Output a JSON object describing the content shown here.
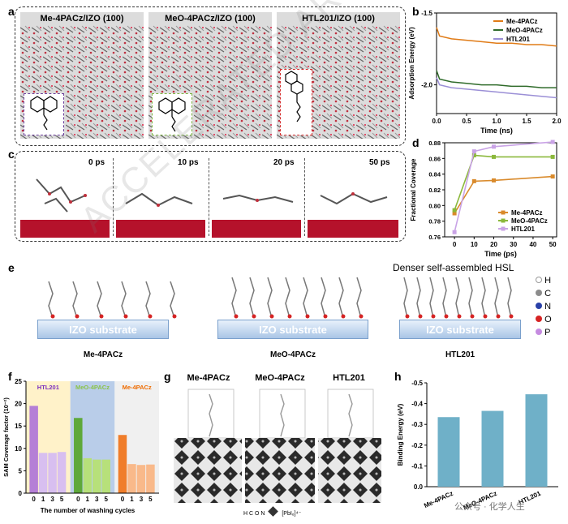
{
  "panels": {
    "a": {
      "label": "a",
      "titles": [
        "Me-4PACz/IZO (100)",
        "MeO-4PACz/IZO (100)",
        "HTL201/IZO (100)"
      ],
      "inset_colors": [
        "#6a3d9a",
        "#7cb342",
        "#d32f2f"
      ]
    },
    "b": {
      "label": "b"
    },
    "c": {
      "label": "c",
      "times": [
        "0 ps",
        "10 ps",
        "20 ps",
        "50 ps"
      ]
    },
    "d": {
      "label": "d"
    },
    "e": {
      "label": "e",
      "substrate_label": "IZO substrate",
      "captions": [
        "Me-4PACz",
        "MeO-4PACz",
        "HTL201"
      ],
      "top_note": "Denser self-assembled HSL",
      "element_legend": [
        {
          "sym": "H",
          "color": "#f2f2f2"
        },
        {
          "sym": "C",
          "color": "#8c8c8c"
        },
        {
          "sym": "N",
          "color": "#2940a8"
        },
        {
          "sym": "O",
          "color": "#d62424"
        },
        {
          "sym": "P",
          "color": "#c58be0"
        }
      ]
    },
    "f": {
      "label": "f"
    },
    "g": {
      "label": "g",
      "titles": [
        "Me-4PACz",
        "MeO-4PACz",
        "HTL201"
      ],
      "legend_text": "H  C  O  N",
      "legend_formula": "[PbI₆]⁴⁻"
    },
    "h": {
      "label": "h"
    }
  },
  "watermark": "ACCELERATED ARTICLE PREVIEW",
  "footer_watermark": "公众号 · 化学人生",
  "chart_data": [
    {
      "id": "b",
      "type": "line",
      "title": "",
      "xlabel": "Time (ns)",
      "ylabel": "Adsorption Energy (eV)",
      "xlim": [
        0.0,
        2.0
      ],
      "ylim": [
        -2.2,
        -1.5
      ],
      "xticks": [
        "0.0",
        "0.5",
        "1.0",
        "1.5",
        "2.0"
      ],
      "yticks": [
        "-1.5",
        "-2.0"
      ],
      "legend": "top-right",
      "series": [
        {
          "name": "Me-4PACz",
          "color": "#e07b16",
          "x": [
            0,
            0.05,
            0.25,
            0.5,
            0.75,
            1.0,
            1.25,
            1.5,
            1.75,
            2.0
          ],
          "y": [
            -1.6,
            -1.66,
            -1.68,
            -1.69,
            -1.7,
            -1.71,
            -1.71,
            -1.72,
            -1.72,
            -1.73
          ]
        },
        {
          "name": "MeO-4PACz",
          "color": "#2f6b2a",
          "x": [
            0,
            0.05,
            0.25,
            0.5,
            0.75,
            1.0,
            1.25,
            1.5,
            1.75,
            2.0
          ],
          "y": [
            -1.9,
            -1.96,
            -1.98,
            -1.99,
            -2.0,
            -2.0,
            -2.01,
            -2.01,
            -2.02,
            -2.02
          ]
        },
        {
          "name": "HTL201",
          "color": "#9b8fd6",
          "x": [
            0,
            0.05,
            0.25,
            0.5,
            0.75,
            1.0,
            1.25,
            1.5,
            1.75,
            2.0
          ],
          "y": [
            -1.95,
            -2.0,
            -2.02,
            -2.03,
            -2.04,
            -2.05,
            -2.06,
            -2.07,
            -2.08,
            -2.09
          ]
        }
      ]
    },
    {
      "id": "d",
      "type": "line",
      "title": "",
      "xlabel": "Time (ps)",
      "ylabel": "Fractional Coverage",
      "x": [
        0,
        10,
        20,
        50
      ],
      "xlim": [
        -5,
        52
      ],
      "ylim": [
        0.76,
        0.88
      ],
      "xticks": [
        "0",
        "10",
        "20",
        "30",
        "40",
        "50"
      ],
      "yticks": [
        "0.76",
        "0.78",
        "0.80",
        "0.82",
        "0.84",
        "0.86",
        "0.88"
      ],
      "legend": "bottom-right",
      "series": [
        {
          "name": "Me-4PACz",
          "color": "#d98a2b",
          "values": [
            0.79,
            0.831,
            0.832,
            0.837
          ]
        },
        {
          "name": "MeO-4PACz",
          "color": "#8bb83b",
          "values": [
            0.794,
            0.864,
            0.862,
            0.862
          ]
        },
        {
          "name": "HTL201",
          "color": "#c9a3e6",
          "values": [
            0.766,
            0.869,
            0.875,
            0.881
          ]
        }
      ]
    },
    {
      "id": "f",
      "type": "bar",
      "title": "",
      "xlabel": "The number of washing cycles",
      "ylabel": "SAM Coverage factor (10⁻²)",
      "categories": [
        "0",
        "1",
        "3",
        "5"
      ],
      "ylim": [
        0,
        25
      ],
      "yticks": [
        "0",
        "5",
        "10",
        "15",
        "20",
        "25"
      ],
      "groups": [
        {
          "name": "HTL201",
          "label_color": "#7b2fbf",
          "bg": "#fff2c9",
          "colors": [
            "#b57fd6",
            "#d8bff0",
            "#d8bff0",
            "#d8bff0"
          ],
          "values": [
            19.5,
            9.0,
            9.0,
            9.2
          ]
        },
        {
          "name": "MeO-4PACz",
          "label_color": "#8bc34a",
          "bg": "#b9cde9",
          "colors": [
            "#5ea83a",
            "#b7e07a",
            "#b7e07a",
            "#b7e07a"
          ],
          "values": [
            16.8,
            7.8,
            7.5,
            7.5
          ]
        },
        {
          "name": "Me-4PACz",
          "label_color": "#ef6c00",
          "bg": "#f0f0f0",
          "colors": [
            "#f07d2a",
            "#f9b98a",
            "#f9b98a",
            "#f9b98a"
          ],
          "values": [
            13.0,
            6.5,
            6.3,
            6.4
          ]
        }
      ]
    },
    {
      "id": "h",
      "type": "bar",
      "title": "",
      "xlabel": "",
      "ylabel": "Binding Energy (eV)",
      "categories": [
        "Me-4PACz",
        "MeO-4PACz",
        "HTL201"
      ],
      "values": [
        -0.335,
        -0.365,
        -0.445
      ],
      "ylim": [
        0,
        -0.5
      ],
      "yticks": [
        "0.0",
        "-0.1",
        "-0.2",
        "-0.3",
        "-0.4",
        "-0.5"
      ],
      "colors": [
        "#6fb0c8",
        "#6fb0c8",
        "#6fb0c8"
      ]
    }
  ]
}
